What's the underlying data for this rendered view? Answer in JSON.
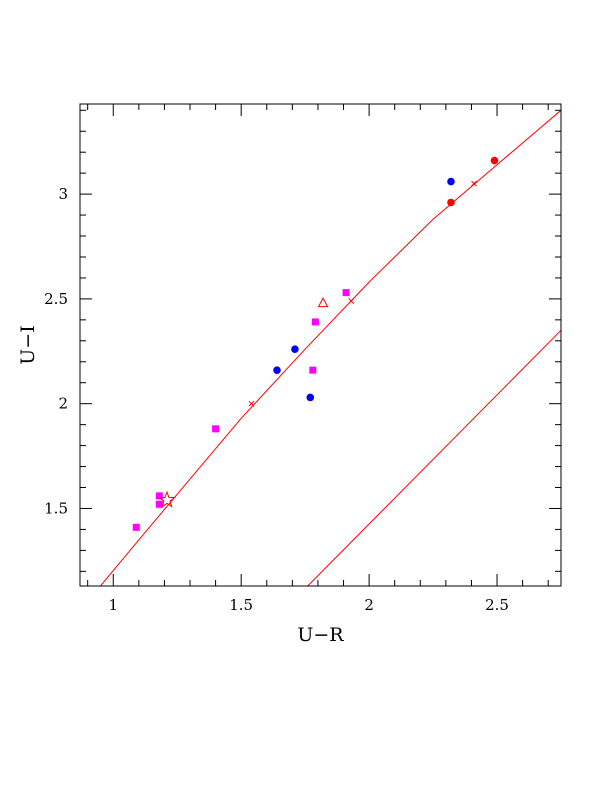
{
  "chart_data": {
    "type": "scatter",
    "title": "",
    "xlabel": "U−R",
    "ylabel": "U−I",
    "xlim": [
      0.87,
      2.75
    ],
    "ylim": [
      1.13,
      3.43
    ],
    "x_ticks": [
      {
        "value": 1,
        "label": "1"
      },
      {
        "value": 1.5,
        "label": "1.5"
      },
      {
        "value": 2,
        "label": "2"
      },
      {
        "value": 2.5,
        "label": "2.5"
      }
    ],
    "y_ticks": [
      {
        "value": 1.5,
        "label": "1.5"
      },
      {
        "value": 2,
        "label": "2"
      },
      {
        "value": 2.5,
        "label": "2.5"
      },
      {
        "value": 3,
        "label": "3"
      }
    ],
    "x_minor_step": 0.1,
    "y_minor_step": 0.1,
    "grid": false,
    "legend": "none",
    "colors": {
      "red": "#ff0000",
      "blue": "#0000ff",
      "magenta": "#ff00ff",
      "axis": "#000000"
    },
    "series": [
      {
        "marker": "square",
        "color": "#ff00ff",
        "points": [
          {
            "x": 1.09,
            "y": 1.41
          },
          {
            "x": 1.18,
            "y": 1.56
          },
          {
            "x": 1.18,
            "y": 1.52
          },
          {
            "x": 1.4,
            "y": 1.88
          },
          {
            "x": 1.78,
            "y": 2.16
          },
          {
            "x": 1.79,
            "y": 2.39
          },
          {
            "x": 1.91,
            "y": 2.53
          }
        ]
      },
      {
        "marker": "circle",
        "color": "#0000ff",
        "points": [
          {
            "x": 1.64,
            "y": 2.16
          },
          {
            "x": 1.71,
            "y": 2.26
          },
          {
            "x": 1.77,
            "y": 2.03
          },
          {
            "x": 2.32,
            "y": 3.06
          }
        ]
      },
      {
        "marker": "circle",
        "color": "#ff0000",
        "points": [
          {
            "x": 2.32,
            "y": 2.96
          },
          {
            "x": 2.49,
            "y": 3.16
          }
        ]
      },
      {
        "marker": "triangle-open",
        "color": "#ff0000",
        "points": [
          {
            "x": 1.82,
            "y": 2.48
          }
        ]
      },
      {
        "marker": "star-open",
        "color": "#ff0000",
        "points": [
          {
            "x": 1.21,
            "y": 1.54
          }
        ]
      },
      {
        "marker": "cross",
        "color": "#ff0000",
        "points": [
          {
            "x": 1.54,
            "y": 2.0
          },
          {
            "x": 1.93,
            "y": 2.49
          },
          {
            "x": 2.41,
            "y": 3.05
          }
        ]
      }
    ],
    "lines": [
      {
        "color": "#ff0000",
        "points": [
          {
            "x": 0.95,
            "y": 1.13
          },
          {
            "x": 1.1,
            "y": 1.35
          },
          {
            "x": 1.3,
            "y": 1.64
          },
          {
            "x": 1.5,
            "y": 1.93
          },
          {
            "x": 1.75,
            "y": 2.26
          },
          {
            "x": 2.0,
            "y": 2.58
          },
          {
            "x": 2.25,
            "y": 2.88
          },
          {
            "x": 2.5,
            "y": 3.14
          },
          {
            "x": 2.75,
            "y": 3.4
          }
        ]
      },
      {
        "color": "#ff0000",
        "points": [
          {
            "x": 1.76,
            "y": 1.13
          },
          {
            "x": 2.75,
            "y": 2.35
          }
        ]
      }
    ]
  }
}
